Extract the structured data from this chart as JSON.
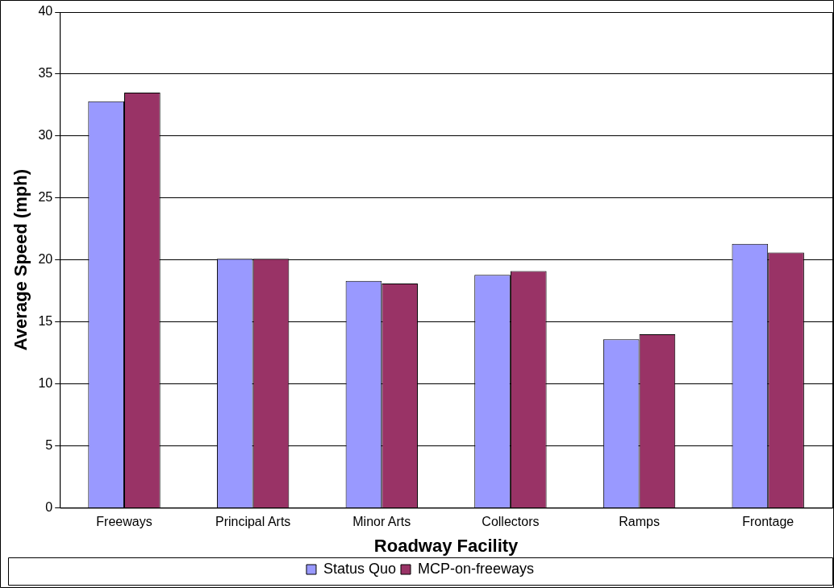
{
  "chart_data": {
    "type": "bar",
    "xlabel": "Roadway Facility",
    "ylabel": "Average Speed (mph)",
    "categories": [
      "Freeways",
      "Principal Arts",
      "Minor Arts",
      "Collectors",
      "Ramps",
      "Frontage"
    ],
    "series": [
      {
        "name": "Status Quo",
        "color": "#9999ff",
        "values": [
          32.8,
          20.1,
          18.3,
          18.8,
          13.6,
          21.3
        ]
      },
      {
        "name": "MCP-on-freeways",
        "color": "#993366",
        "values": [
          33.5,
          20.1,
          18.1,
          19.1,
          14.0,
          20.6
        ]
      }
    ],
    "ylim": [
      0,
      40
    ],
    "yticks": [
      0,
      5,
      10,
      15,
      20,
      25,
      30,
      35,
      40
    ],
    "grid": "y",
    "legend": "bottom"
  }
}
